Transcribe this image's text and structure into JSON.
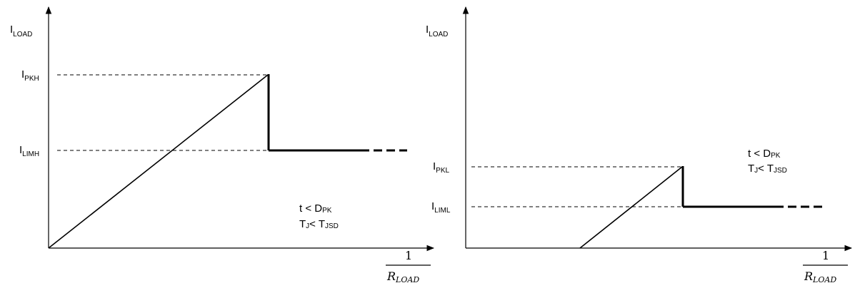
{
  "left": {
    "y_axis_label": "I",
    "y_axis_label_sub": "LOAD",
    "level_high": {
      "main": "I",
      "sub": "PKH"
    },
    "level_limit": {
      "main": "I",
      "sub": "LIMH"
    },
    "note_line1": {
      "main": "t < D",
      "sub": "PK"
    },
    "note_line2": {
      "a": "T",
      "a_sub": "J",
      "b": "< T",
      "b_sub": "JSD"
    },
    "x_axis_num": "1",
    "x_axis_den": "R",
    "x_axis_den_sub": "LOAD"
  },
  "right": {
    "y_axis_label": "I",
    "y_axis_label_sub": "LOAD",
    "level_high": {
      "main": "I",
      "sub": "PKL"
    },
    "level_limit": {
      "main": "I",
      "sub": "LIML"
    },
    "note_line1": {
      "main": "t < D",
      "sub": "PK"
    },
    "note_line2": {
      "a": "T",
      "a_sub": "J",
      "b": "< T",
      "b_sub": "JSD"
    },
    "x_axis_num": "1",
    "x_axis_den": "R",
    "x_axis_den_sub": "LOAD"
  }
}
